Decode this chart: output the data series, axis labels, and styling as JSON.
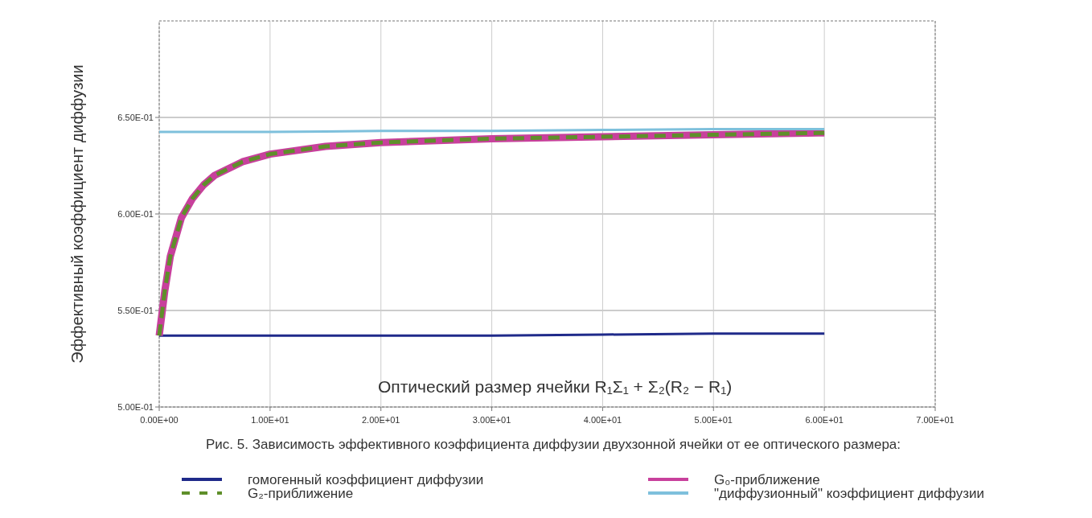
{
  "chart_data": {
    "type": "line",
    "xlabel": "Оптический размер ячейки  R₁Σ₁ + Σ₂(R₂ − R₁)",
    "ylabel": "Эффективный коэффициент диффузии",
    "annotations": [
      "Рис. 5. Зависимость эффективного коэффициента диффузии двухзонной ячейки от ее оптического размера:"
    ],
    "x": [
      0,
      0.5,
      1,
      2,
      3,
      4,
      5,
      7.5,
      10,
      15,
      20,
      30,
      40,
      50,
      60
    ],
    "series": [
      {
        "name": "гомогенный коэффициент диффузии",
        "color": "#1f2a8a",
        "values": [
          0.537,
          0.537,
          0.537,
          0.537,
          0.537,
          0.537,
          0.537,
          0.537,
          0.537,
          0.537,
          0.537,
          0.537,
          0.5375,
          0.538,
          0.538
        ]
      },
      {
        "name": "G₀-приближение",
        "color": "#c8409c",
        "values": [
          0.537,
          0.56,
          0.578,
          0.598,
          0.608,
          0.615,
          0.62,
          0.627,
          0.631,
          0.635,
          0.637,
          0.639,
          0.64,
          0.641,
          0.642
        ]
      },
      {
        "name": "G₂-приближение",
        "color": "#5f8f2a",
        "line_style": "dashed",
        "values": [
          0.537,
          0.56,
          0.578,
          0.598,
          0.608,
          0.615,
          0.62,
          0.627,
          0.631,
          0.635,
          0.637,
          0.639,
          0.64,
          0.641,
          0.642
        ]
      },
      {
        "name": "\"диффузионный\" коэффициент диффузии",
        "color": "#7ec0dc",
        "values": [
          0.6425,
          0.6425,
          0.6425,
          0.6425,
          0.6425,
          0.6425,
          0.6425,
          0.6425,
          0.6425,
          0.6427,
          0.643,
          0.643,
          0.6435,
          0.644,
          0.644
        ]
      }
    ],
    "xlim": [
      0,
      70
    ],
    "ylim": [
      0.5,
      0.7
    ],
    "xticks": [
      {
        "value": 0,
        "label": "0.00E+00"
      },
      {
        "value": 10,
        "label": "1.00E+01"
      },
      {
        "value": 20,
        "label": "2.00E+01"
      },
      {
        "value": 30,
        "label": "3.00E+01"
      },
      {
        "value": 40,
        "label": "4.00E+01"
      },
      {
        "value": 50,
        "label": "5.00E+01"
      },
      {
        "value": 60,
        "label": "6.00E+01"
      },
      {
        "value": 70,
        "label": "7.00E+01"
      }
    ],
    "yticks": [
      {
        "value": 0.5,
        "label": "5.00E-01"
      },
      {
        "value": 0.55,
        "label": "5.50E-01"
      },
      {
        "value": 0.6,
        "label": "6.00E-01"
      },
      {
        "value": 0.65,
        "label": "6.50E-01"
      }
    ],
    "grid": true,
    "legend": "bottom",
    "marker": "none",
    "line_style": "solid"
  }
}
